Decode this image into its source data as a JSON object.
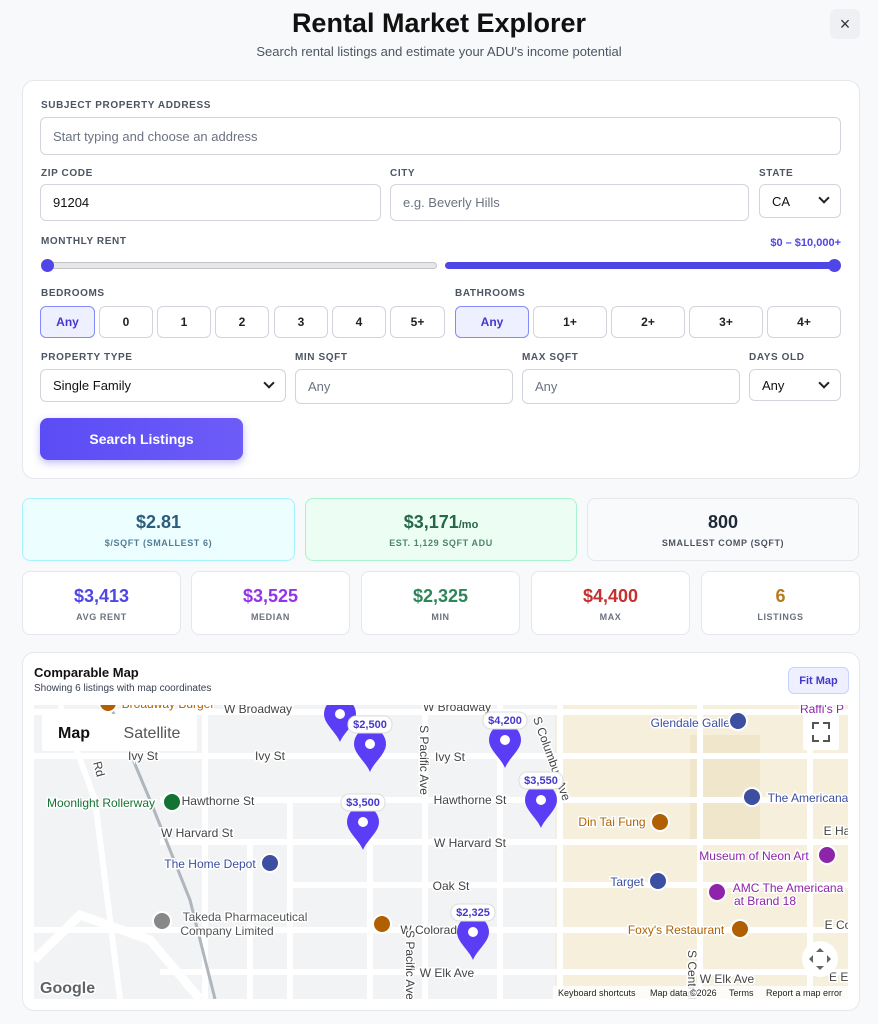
{
  "header": {
    "title": "Rental Market Explorer",
    "subtitle": "Search rental listings and estimate your ADU's income potential",
    "close": "×"
  },
  "form": {
    "address": {
      "label": "SUBJECT PROPERTY ADDRESS",
      "placeholder": "Start typing and choose an address"
    },
    "zip": {
      "label": "ZIP CODE",
      "value": "91204"
    },
    "city": {
      "label": "CITY",
      "placeholder": "e.g. Beverly Hills"
    },
    "state": {
      "label": "STATE",
      "value": "CA"
    },
    "rent": {
      "label": "MONTHLY RENT",
      "range": "$0 – $10,000+"
    },
    "bedrooms": {
      "label": "BEDROOMS",
      "options": [
        "Any",
        "0",
        "1",
        "2",
        "3",
        "4",
        "5+"
      ]
    },
    "bathrooms": {
      "label": "BATHROOMS",
      "options": [
        "Any",
        "1+",
        "2+",
        "3+",
        "4+"
      ]
    },
    "property_type": {
      "label": "PROPERTY TYPE",
      "value": "Single Family"
    },
    "min_sqft": {
      "label": "MIN SQFT",
      "placeholder": "Any"
    },
    "max_sqft": {
      "label": "MAX SQFT",
      "placeholder": "Any"
    },
    "days_old": {
      "label": "DAYS OLD",
      "value": "Any"
    },
    "submit": "Search Listings"
  },
  "stats": {
    "top": [
      {
        "value": "$2.81",
        "label": "$/SQFT (SMALLEST 6)"
      },
      {
        "value": "$3,171",
        "unit": "/mo",
        "label": "EST. 1,129 SQFT ADU"
      },
      {
        "value": "800",
        "label": "SMALLEST COMP (SQFT)"
      }
    ],
    "bottom": [
      {
        "value": "$3,413",
        "label": "AVG RENT"
      },
      {
        "value": "$3,525",
        "label": "MEDIAN"
      },
      {
        "value": "$2,325",
        "label": "MIN"
      },
      {
        "value": "$4,400",
        "label": "MAX"
      },
      {
        "value": "6",
        "label": "LISTINGS"
      }
    ]
  },
  "map": {
    "title": "Comparable Map",
    "subtitle": "Showing 6 listings with map coordinates",
    "fit": "Fit Map",
    "types": [
      "Map",
      "Satellite"
    ],
    "pins": [
      null,
      "$2,500",
      "$4,200",
      "$3,550",
      "$3,500",
      "$2,325"
    ],
    "labels": [
      "W Broadway",
      "W Broadway",
      "Ivy St",
      "Ivy St",
      "Hawthorne St",
      "Hawthorne St",
      "W Harvard St",
      "W Harvard St",
      "Oak St",
      "W Colorado",
      "W Elk Ave",
      "W Elk Ave",
      "S Pacific Ave",
      "S Pacific Ave",
      "S Columbus Ave",
      "S Central",
      "E Ha",
      "E Co",
      "E El",
      "Broadway Burger",
      "Glendale Galleria",
      "Raffi's P",
      "The Americana",
      "Moonlight Rollerway",
      "Din Tai Fung",
      "The Home Depot",
      "Museum of Neon Art",
      "Target",
      "AMC The Americana",
      "at Brand 18",
      "Takeda Pharmaceutical",
      "Company Limited",
      "Foxy's Restaurant",
      "Ivy St",
      "Rd"
    ],
    "logo": "Google",
    "footer": [
      "Keyboard shortcuts",
      "Map data ©2026",
      "Terms",
      "Report a map error"
    ]
  }
}
